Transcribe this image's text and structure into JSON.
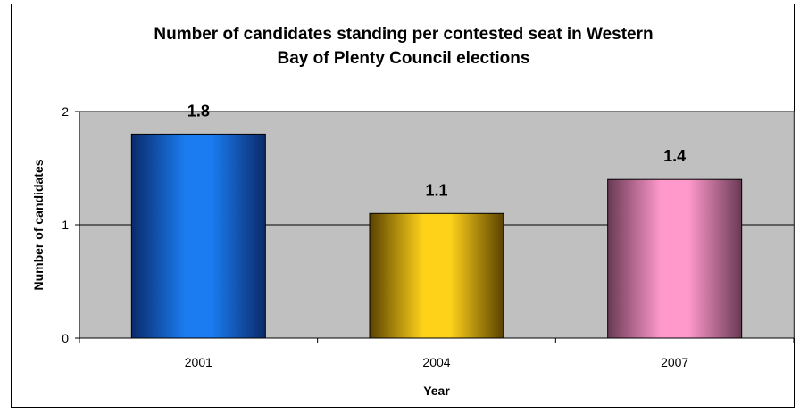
{
  "chart_data": {
    "type": "bar",
    "title_lines": [
      "Number of candidates standing per contested seat  in Western",
      "Bay of Plenty Council elections"
    ],
    "categories": [
      "2001",
      "2004",
      "2007"
    ],
    "values": [
      1.8,
      1.1,
      1.4
    ],
    "data_labels": [
      "1.8",
      "1.1",
      "1.4"
    ],
    "xlabel": "Year",
    "ylabel": "Number of candidates",
    "ylim": [
      0,
      2
    ],
    "yticks": [
      "0",
      "1",
      "2"
    ],
    "grid": true,
    "legend": "none",
    "plot_background": "#c0c0c0",
    "bar_colors": [
      {
        "edge": "#0a2a6b",
        "mid": "#1a7cf0"
      },
      {
        "edge": "#5a4200",
        "mid": "#ffd21a"
      },
      {
        "edge": "#6a3a55",
        "mid": "#ff99cc"
      }
    ]
  }
}
